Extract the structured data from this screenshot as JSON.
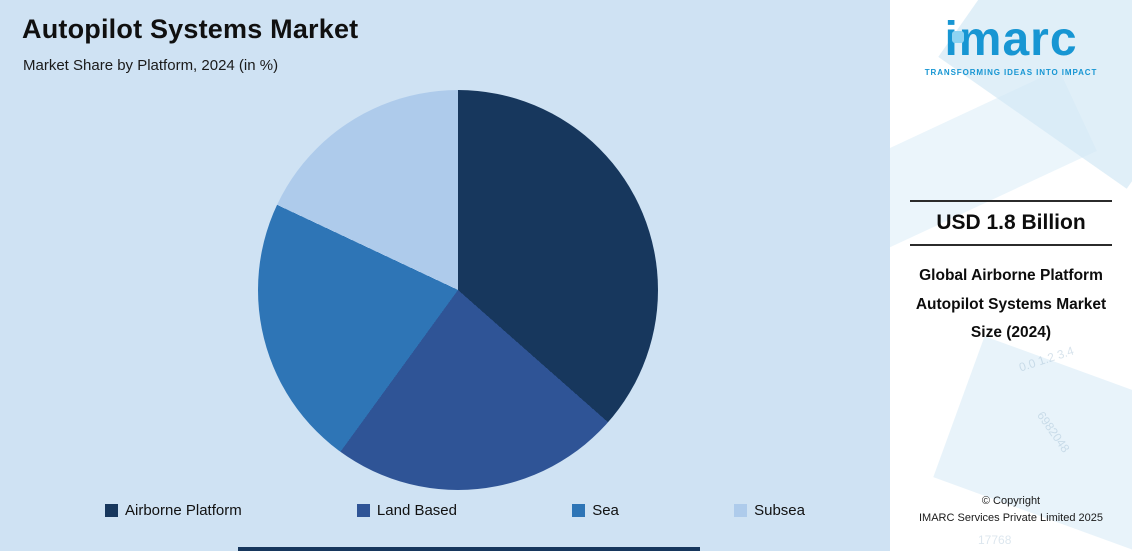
{
  "header": {
    "title": "Autopilot Systems Market",
    "subtitle": "Market Share by Platform, 2024 (in %)"
  },
  "chart_data": {
    "type": "pie",
    "title": "Autopilot Systems Market",
    "subtitle": "Market Share by Platform, 2024 (in %)",
    "unit": "%",
    "start_angle_deg": 0,
    "direction": "clockwise",
    "legend_position": "bottom",
    "categories": [
      "Airborne Platform",
      "Land Based",
      "Sea",
      "Subsea"
    ],
    "values": [
      36.5,
      23.5,
      22,
      18
    ],
    "slices": [
      {
        "label": "Airborne Platform",
        "value": 36.5,
        "color": "#17375d"
      },
      {
        "label": "Land Based",
        "value": 23.5,
        "color": "#2f5496"
      },
      {
        "label": "Sea",
        "value": 22,
        "color": "#2e75b6"
      },
      {
        "label": "Subsea",
        "value": 18,
        "color": "#aecbeb"
      }
    ]
  },
  "side_panel": {
    "logo_text": "imarc",
    "logo_tagline": "TRANSFORMING IDEAS INTO IMPACT",
    "stat_value": "USD 1.8 Billion",
    "stat_label": "Global Airborne Platform Autopilot Systems Market Size (2024)",
    "copyright_line1": "© Copyright",
    "copyright_line2": "IMARC Services Private Limited 2025",
    "watermarks": [
      "6982048",
      "17768",
      "0.0  1.2  3.4"
    ]
  },
  "colors": {
    "chart_bg": "#cfe2f3",
    "panel_bg": "#ffffff",
    "brand_blue": "#1796d3",
    "accent_dark": "#17375d"
  }
}
